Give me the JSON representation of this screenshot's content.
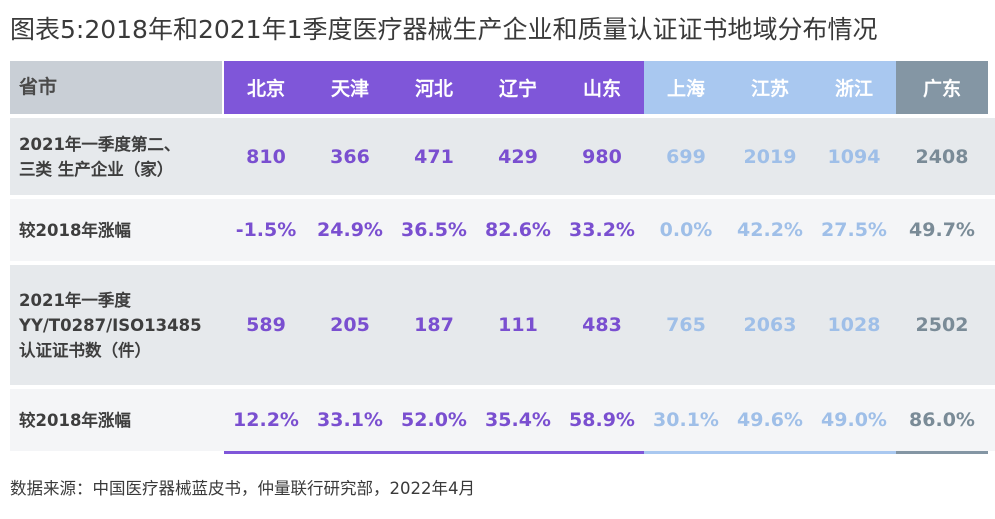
{
  "title": "图表5:2018年和2021年1季度医疗器械生产企业和质量认证证书地域分布情况",
  "source": "数据来源：中国医疗器械蓝皮书，仲量联行研究部，2022年4月",
  "colors": {
    "header_label_bg": "#c9cfd6",
    "purple_header": "#7f56d9",
    "blue_header": "#a9c8f0",
    "grey_header": "#8496a4",
    "row_gray": "#e6e9ec",
    "row_light": "#f4f5f7",
    "purple_text": "#7a4fd0",
    "blue_text": "#9fbfe8",
    "grey_text": "#7a8b97"
  },
  "chart_data": {
    "type": "table",
    "header_label": "省市",
    "columns": [
      {
        "name": "北京",
        "group": "purple"
      },
      {
        "name": "天津",
        "group": "purple"
      },
      {
        "name": "河北",
        "group": "purple"
      },
      {
        "name": "辽宁",
        "group": "purple"
      },
      {
        "name": "山东",
        "group": "purple"
      },
      {
        "name": "上海",
        "group": "blue"
      },
      {
        "name": "江苏",
        "group": "blue"
      },
      {
        "name": "浙江",
        "group": "blue"
      },
      {
        "name": "广东",
        "group": "grey"
      }
    ],
    "rows": [
      {
        "label": [
          "2021年一季度第二、",
          "三类 生产企业（家）"
        ],
        "values": [
          "810",
          "366",
          "471",
          "429",
          "980",
          "699",
          "2019",
          "1094",
          "2408"
        ]
      },
      {
        "label": [
          "较2018年涨幅"
        ],
        "values": [
          "-1.5%",
          "24.9%",
          "36.5%",
          "82.6%",
          "33.2%",
          "0.0%",
          "42.2%",
          "27.5%",
          "49.7%"
        ]
      },
      {
        "label": [
          "2021年一季度",
          "YY/T0287/ISO13485",
          "认证证书数（件）"
        ],
        "values": [
          "589",
          "205",
          "187",
          "111",
          "483",
          "765",
          "2063",
          "1028",
          "2502"
        ]
      },
      {
        "label": [
          "较2018年涨幅"
        ],
        "values": [
          "12.2%",
          "33.1%",
          "52.0%",
          "35.4%",
          "58.9%",
          "30.1%",
          "49.6%",
          "49.0%",
          "86.0%"
        ]
      }
    ]
  }
}
